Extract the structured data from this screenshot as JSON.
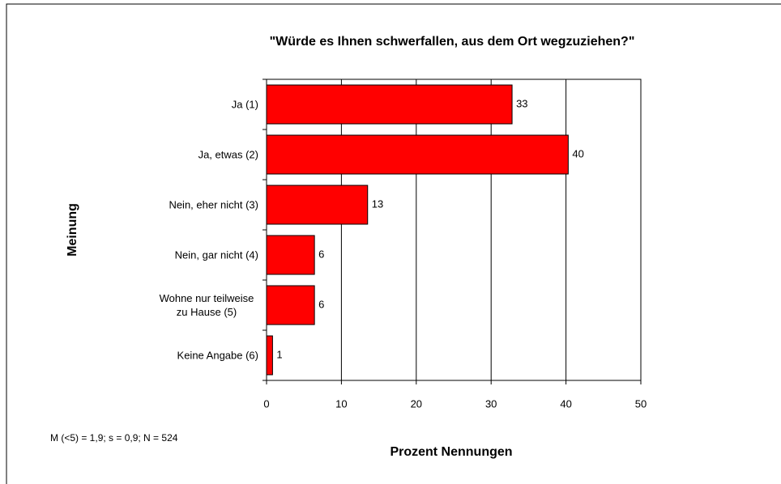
{
  "chart_data": {
    "type": "bar",
    "orientation": "horizontal",
    "title": "\"Würde es Ihnen schwerfallen, aus dem Ort wegzuziehen?\"",
    "xlabel": "Prozent Nennungen",
    "ylabel": "Meinung",
    "note": "M (<5) = 1,9; s = 0,9; N = 524",
    "categories": [
      "Ja (1)",
      "Ja, etwas (2)",
      "Nein, eher nicht (3)",
      "Nein, gar nicht (4)",
      "Wohne nur teilweise zu Hause (5)",
      "Keine Angabe (6)"
    ],
    "values": [
      32.8,
      40.3,
      13.5,
      6.4,
      6.4,
      0.8
    ],
    "value_labels": [
      "33",
      "40",
      "13",
      "6",
      "6",
      "1"
    ],
    "color": "#ff0000",
    "xlim": [
      0,
      50
    ],
    "xticks": [
      0,
      10,
      20,
      30,
      40,
      50
    ],
    "grid": true
  }
}
